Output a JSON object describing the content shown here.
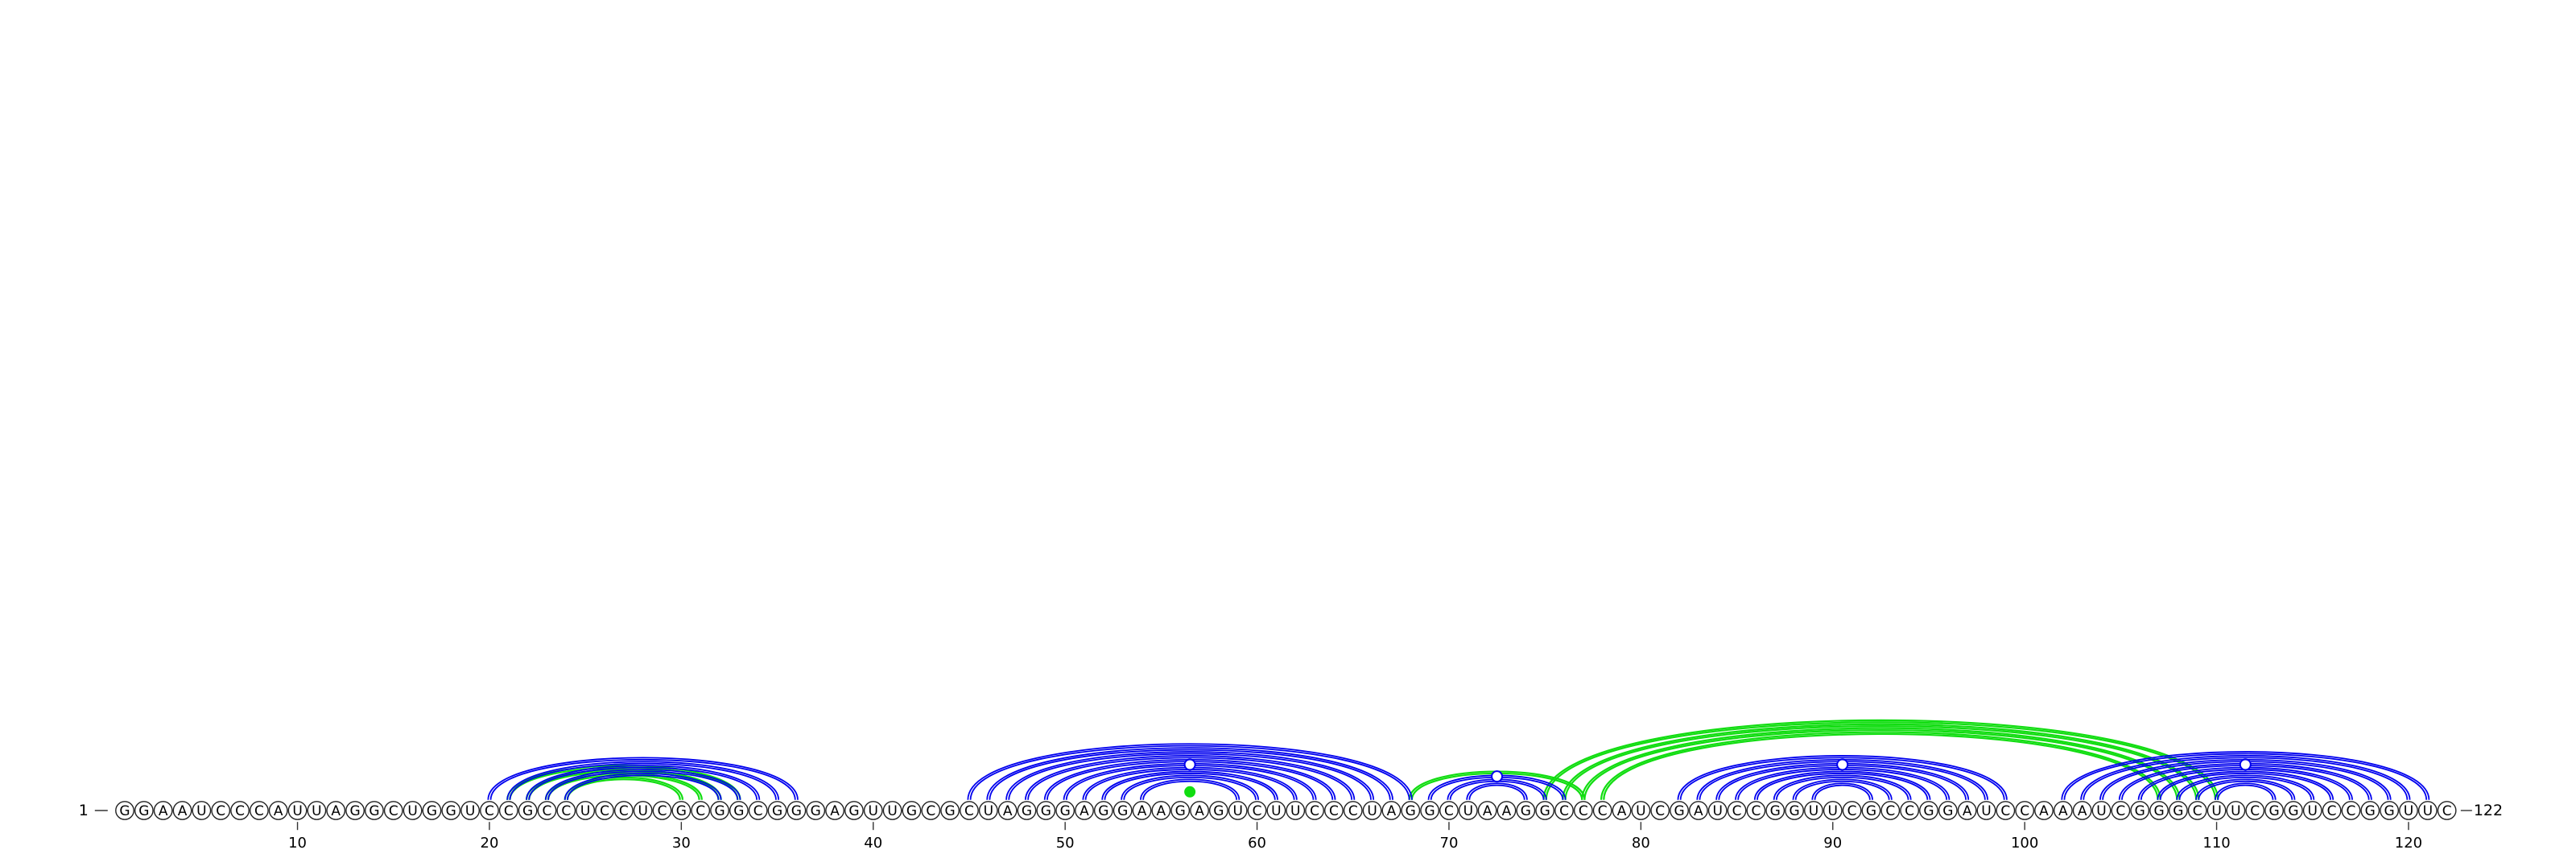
{
  "diagram": {
    "type": "rna-arc-diagram",
    "sequence": "GGAAUCCCAUUAGGCUGGUCCGCCUCCUCGCGGCGGGAGUUGCGCUAGGGAGGAAGAGUCUUCCCUAGGCUAAGGCCCAUCGAUCCGGUUCGCCGGAUCCAAAUCGGGCUUCGGUCCGGUUC",
    "length": 122,
    "start_label": "1",
    "end_label": "122",
    "ticks": [
      "10",
      "20",
      "30",
      "40",
      "50",
      "60",
      "70",
      "80",
      "90",
      "100",
      "110",
      "120"
    ],
    "colors": {
      "blue": "#0000ee",
      "green": "#11dd11"
    },
    "blue_helices": [
      {
        "i": 20,
        "j": 36,
        "len": 5
      },
      {
        "i": 45,
        "j": 68,
        "len": 10
      },
      {
        "i": 69,
        "j": 76,
        "len": 3
      },
      {
        "i": 82,
        "j": 99,
        "len": 8
      },
      {
        "i": 102,
        "j": 121,
        "len": 9
      }
    ],
    "green_helices": [
      {
        "i": 21,
        "j": 33,
        "len": 4
      },
      {
        "i": 68,
        "j": 77,
        "len": 1
      },
      {
        "i": 75,
        "j": 110,
        "len": 4
      }
    ],
    "blue_markers": [
      56.5,
      72.5,
      90.5,
      111.5
    ],
    "green_markers": [
      56.5
    ]
  }
}
